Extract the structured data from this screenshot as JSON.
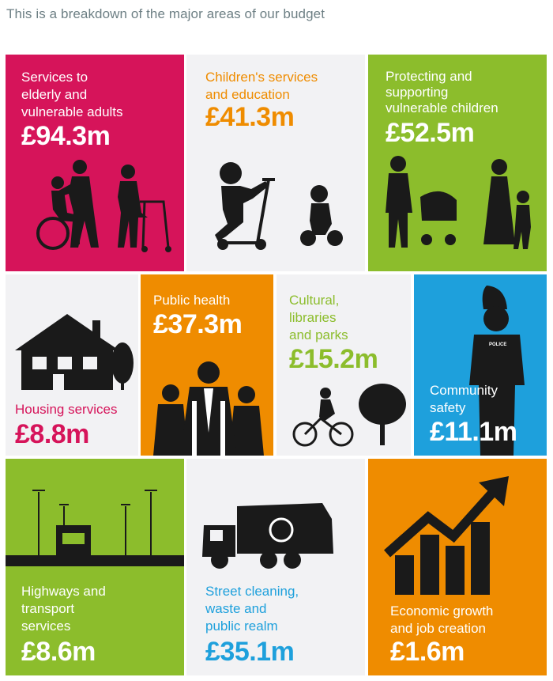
{
  "intro": "This is a breakdown of the major areas of our budget",
  "colors": {
    "magenta": "#d6145a",
    "orange": "#ef8c00",
    "green": "#8cbd2c",
    "blue": "#1ea0dc",
    "light": "#f2f2f4",
    "silhouette": "#1a1a1a"
  },
  "tiles": {
    "elderly": {
      "label": "Services to\nelderly and\nvulnerable adults",
      "amount": "£94.3m",
      "icon": "wheelchair-walker-icon"
    },
    "children": {
      "label": "Children's services\nand education",
      "amount": "£41.3m",
      "icon": "scooter-kids-icon"
    },
    "protecting": {
      "label": "Protecting and\nsupporting\nvulnerable children",
      "amount": "£52.5m",
      "icon": "family-pram-icon"
    },
    "housing": {
      "label": "Housing services",
      "amount": "£8.8m",
      "icon": "house-icon"
    },
    "health": {
      "label": "Public health",
      "amount": "£37.3m",
      "icon": "doctors-icon"
    },
    "cultural": {
      "label": "Cultural,\nlibraries\nand parks",
      "amount": "£15.2m",
      "icon": "cyclist-tree-icon"
    },
    "community": {
      "label": "Community\nsafety",
      "amount": "£11.1m",
      "icon": "police-officer-icon",
      "badge": "POLICE"
    },
    "highways": {
      "label": "Highways and\ntransport\nservices",
      "amount": "£8.6m",
      "icon": "truck-road-icon"
    },
    "street": {
      "label": "Street cleaning,\nwaste and\npublic realm",
      "amount": "£35.1m",
      "icon": "garbage-truck-icon"
    },
    "economic": {
      "label": "Economic growth\nand job creation",
      "amount": "£1.6m",
      "icon": "growth-chart-icon"
    }
  }
}
